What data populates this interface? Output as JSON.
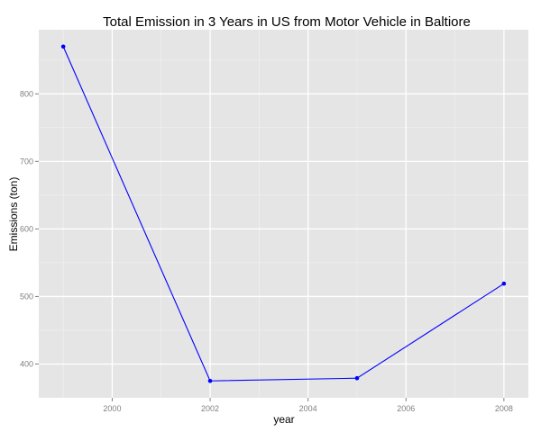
{
  "chart_data": {
    "type": "line",
    "title": "Total Emission in 3 Years in US from Motor Vehicle in Baltiore",
    "xlabel": "year",
    "ylabel": "Emissions (ton)",
    "x": [
      1999,
      2002,
      2005,
      2008
    ],
    "series": [
      {
        "values": [
          870,
          375,
          379,
          519
        ]
      }
    ],
    "xlim": [
      1998.5,
      2008.5
    ],
    "ylim": [
      350,
      895
    ],
    "xticks": [
      2000,
      2002,
      2004,
      2006,
      2008
    ],
    "xtick_labels": [
      "2000",
      "2002",
      "2004",
      "2006",
      "2008"
    ],
    "yticks": [
      400,
      500,
      600,
      700,
      800
    ],
    "ytick_labels": [
      "400",
      "500",
      "600",
      "700",
      "800"
    ],
    "grid": true,
    "colors": {
      "panel_background": "#e5e5e5",
      "grid_major": "#ffffff",
      "line": "#0000ff",
      "point": "#0000ff"
    }
  }
}
